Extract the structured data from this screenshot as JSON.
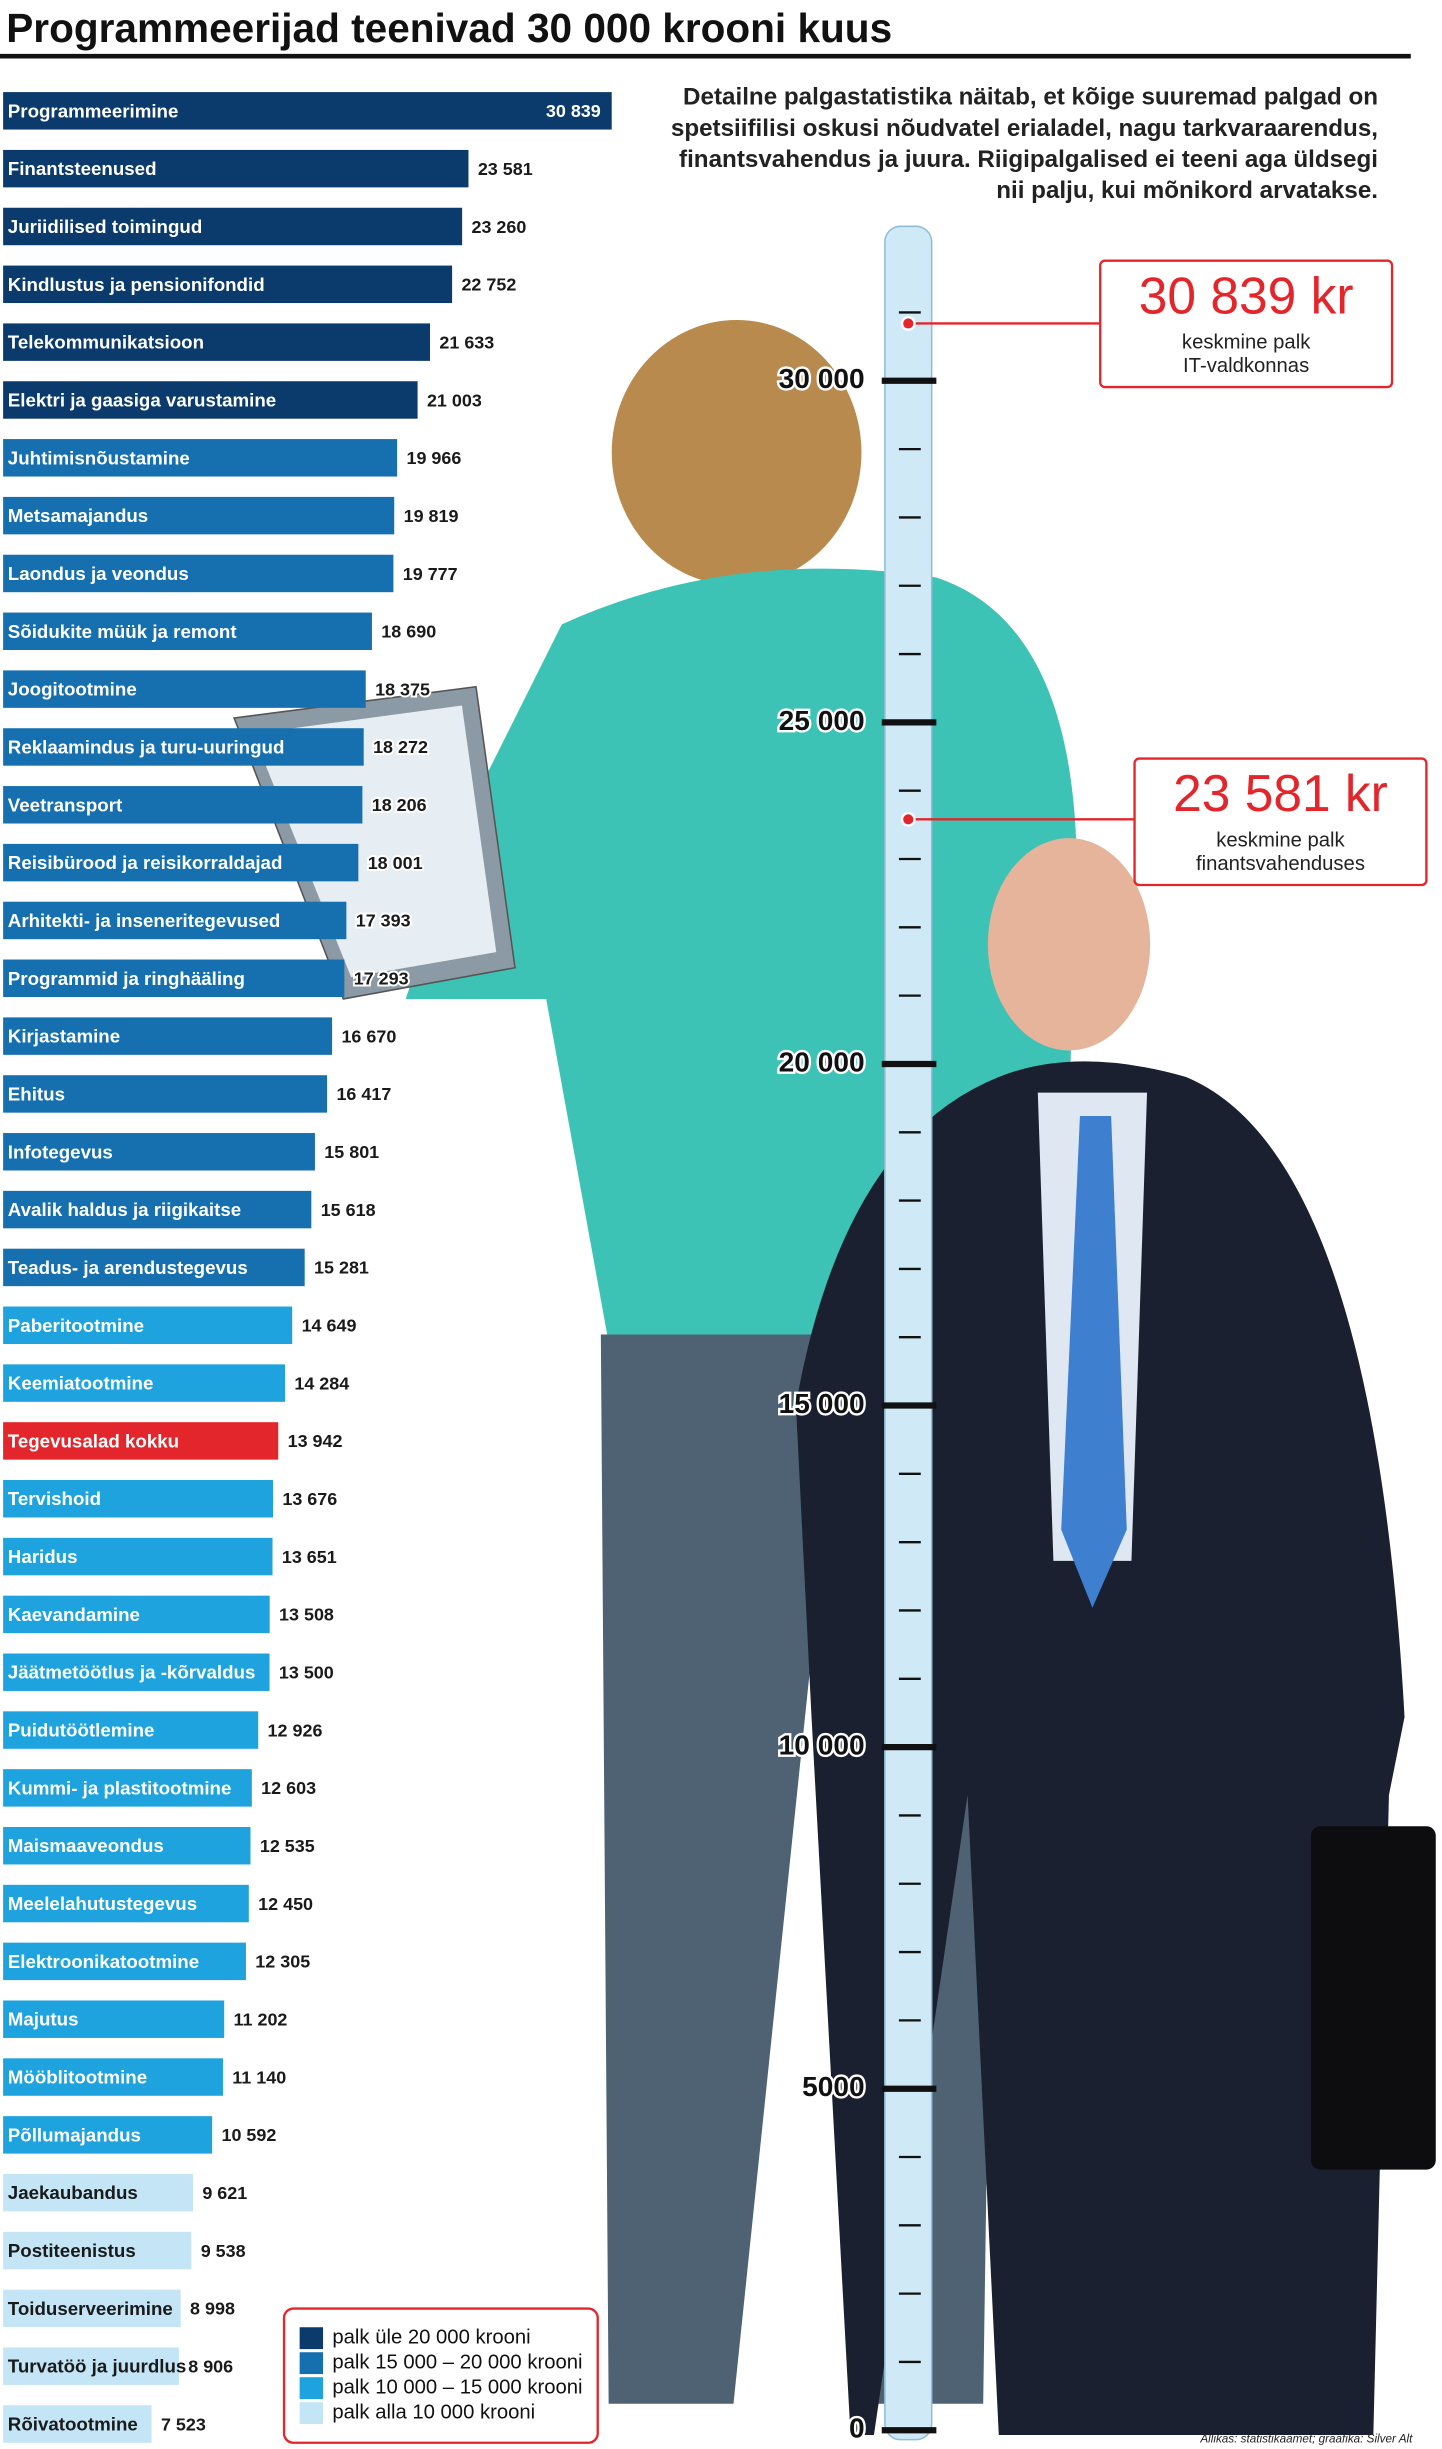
{
  "chart_data": {
    "type": "barh",
    "title": "Programmeerijad teenivad 30 000 krooni kuus",
    "subtitle": "Detailne palgastatistika näitab, et kõige suuremad palgad on spetsiifilisi oskusi nõudvatel erialadel, nagu tarkvaraarendus, finantsvahendus ja juura. Riigipalgalised ei teeni aga üldsegi nii palju, kui mõnikord arvatakse.",
    "source": "Allikas: statistikaamet; graafika: Silver Alt",
    "categories": [
      "Programmeerimine",
      "Finantsteenused",
      "Juriidilised toimingud",
      "Kindlustus ja pensionifondid",
      "Telekommunikatsioon",
      "Elektri ja gaasiga varustamine",
      "Juhtimisnõustamine",
      "Metsamajandus",
      "Laondus ja veondus",
      "Sõidukite müük ja remont",
      "Joogitootmine",
      "Reklaamindus ja turu-uuringud",
      "Veetransport",
      "Reisibürood ja reisikorraldajad",
      "Arhitekti- ja inseneritegevused",
      "Programmid ja ringhääling",
      "Kirjastamine",
      "Ehitus",
      "Infotegevus",
      "Avalik haldus ja riigikaitse",
      "Teadus- ja arendustegevus",
      "Paberitootmine",
      "Keemiatootmine",
      "Tegevusalad kokku",
      "Tervishoid",
      "Haridus",
      "Kaevandamine",
      "Jäätmetöötlus ja -kõrvaldus",
      "Puidutöötlemine",
      "Kummi- ja plastitootmine",
      "Maismaaveondus",
      "Meelelahutustegevus",
      "Elektroonikatootmine",
      "Majutus",
      "Mööblitootmine",
      "Põllumajandus",
      "Jaekaubandus",
      "Postiteenistus",
      "Toiduserveerimine",
      "Turvatöö ja juurdlus",
      "Rõivatootmine"
    ],
    "values": [
      30839,
      23581,
      23260,
      22752,
      21633,
      21003,
      19966,
      19819,
      19777,
      18690,
      18375,
      18272,
      18206,
      18001,
      17393,
      17293,
      16670,
      16417,
      15801,
      15618,
      15281,
      14649,
      14284,
      13942,
      13676,
      13651,
      13508,
      13500,
      12926,
      12603,
      12535,
      12450,
      12305,
      11202,
      11140,
      10592,
      9621,
      9538,
      8998,
      8906,
      7523
    ],
    "value_labels": [
      "30 839",
      "23 581",
      "23 260",
      "22 752",
      "21 633",
      "21 003",
      "19 966",
      "19 819",
      "19 777",
      "18 690",
      "18 375",
      "18 272",
      "18 206",
      "18 001",
      "17 393",
      "17 293",
      "16 670",
      "16 417",
      "15 801",
      "15 618",
      "15 281",
      "14 649",
      "14 284",
      "13 942",
      "13 676",
      "13 651",
      "13 508",
      "13 500",
      "12 926",
      "12 603",
      "12 535",
      "12 450",
      "12 305",
      "11 202",
      "11 140",
      "10 592",
      "9 621",
      "9 538",
      "8 998",
      "8 906",
      "7 523"
    ],
    "colors": [
      "#0b3a6c",
      "#0b3a6c",
      "#0b3a6c",
      "#0b3a6c",
      "#0b3a6c",
      "#0b3a6c",
      "#1670b0",
      "#1670b0",
      "#1670b0",
      "#1670b0",
      "#1670b0",
      "#1670b0",
      "#1670b0",
      "#1670b0",
      "#1670b0",
      "#1670b0",
      "#1670b0",
      "#1670b0",
      "#1670b0",
      "#1670b0",
      "#1670b0",
      "#1ea3de",
      "#1ea3de",
      "#e3262b",
      "#1ea3de",
      "#1ea3de",
      "#1ea3de",
      "#1ea3de",
      "#1ea3de",
      "#1ea3de",
      "#1ea3de",
      "#1ea3de",
      "#1ea3de",
      "#1ea3de",
      "#1ea3de",
      "#1ea3de",
      "#c3e5f6",
      "#c3e5f6",
      "#c3e5f6",
      "#c3e5f6",
      "#c3e5f6"
    ],
    "xlim": [
      0,
      31000
    ],
    "legend": [
      {
        "label": "palk üle 20 000 krooni",
        "color": "#0b3a6c"
      },
      {
        "label": "palk 15 000 – 20 000 krooni",
        "color": "#1670b0"
      },
      {
        "label": "palk 10 000 – 15 000 krooni",
        "color": "#1ea3de"
      },
      {
        "label": "palk alla 10 000 krooni",
        "color": "#c3e5f6"
      }
    ],
    "ruler": {
      "ylim": [
        0,
        32300
      ],
      "yticks": [
        0,
        5000,
        {
          "value": 10000,
          "label": "10 000"
        },
        {
          "value": 15000,
          "label": "15 000"
        },
        {
          "value": 20000,
          "label": "20 000"
        },
        {
          "value": 25000,
          "label": "25 000"
        },
        {
          "value": 30000,
          "label": "30 000"
        }
      ],
      "minor_ticks": [
        1000,
        2000,
        3000,
        4000,
        6000,
        7000,
        8000,
        9000,
        11000,
        12000,
        13000,
        14000,
        16000,
        17000,
        18000,
        19000,
        21000,
        22000,
        23000,
        24000,
        26000,
        27000,
        28000,
        29000,
        31000
      ]
    },
    "callouts": [
      {
        "value": 30839,
        "label": "30 839 kr",
        "lines": [
          "keskmine palk",
          "IT-valdkonnas"
        ]
      },
      {
        "value": 23581,
        "label": "23 581 kr",
        "lines": [
          "keskmine palk",
          "finantsvahenduses"
        ]
      }
    ]
  }
}
